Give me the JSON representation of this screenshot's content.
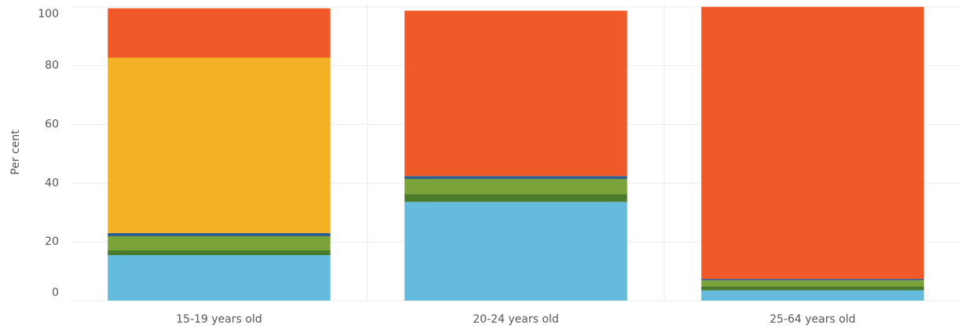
{
  "chart_data": {
    "type": "stacked-bar",
    "y_label": "Per cent",
    "categories": [
      "15-19 years old",
      "20-24 years old",
      "25-64 years old"
    ],
    "series": [
      {
        "color": "#65bbdb",
        "values": [
          15.5,
          33.6,
          3.5
        ]
      },
      {
        "color": "#4a7a2a",
        "values": [
          1.6,
          2.7,
          1.3
        ]
      },
      {
        "color": "#7aa43a",
        "values": [
          4.8,
          5.1,
          2.1
        ]
      },
      {
        "color": "#2f5d8c",
        "values": [
          1.1,
          1.0,
          0.5
        ]
      },
      {
        "color": "#f3b125",
        "values": [
          59.7,
          0,
          0
        ]
      },
      {
        "color": "#f05a28",
        "values": [
          16.8,
          56.3,
          92.6
        ]
      }
    ],
    "ylim": [
      0,
      101
    ],
    "yticks": [
      0,
      20,
      40,
      60,
      80,
      100
    ],
    "grid": true
  }
}
